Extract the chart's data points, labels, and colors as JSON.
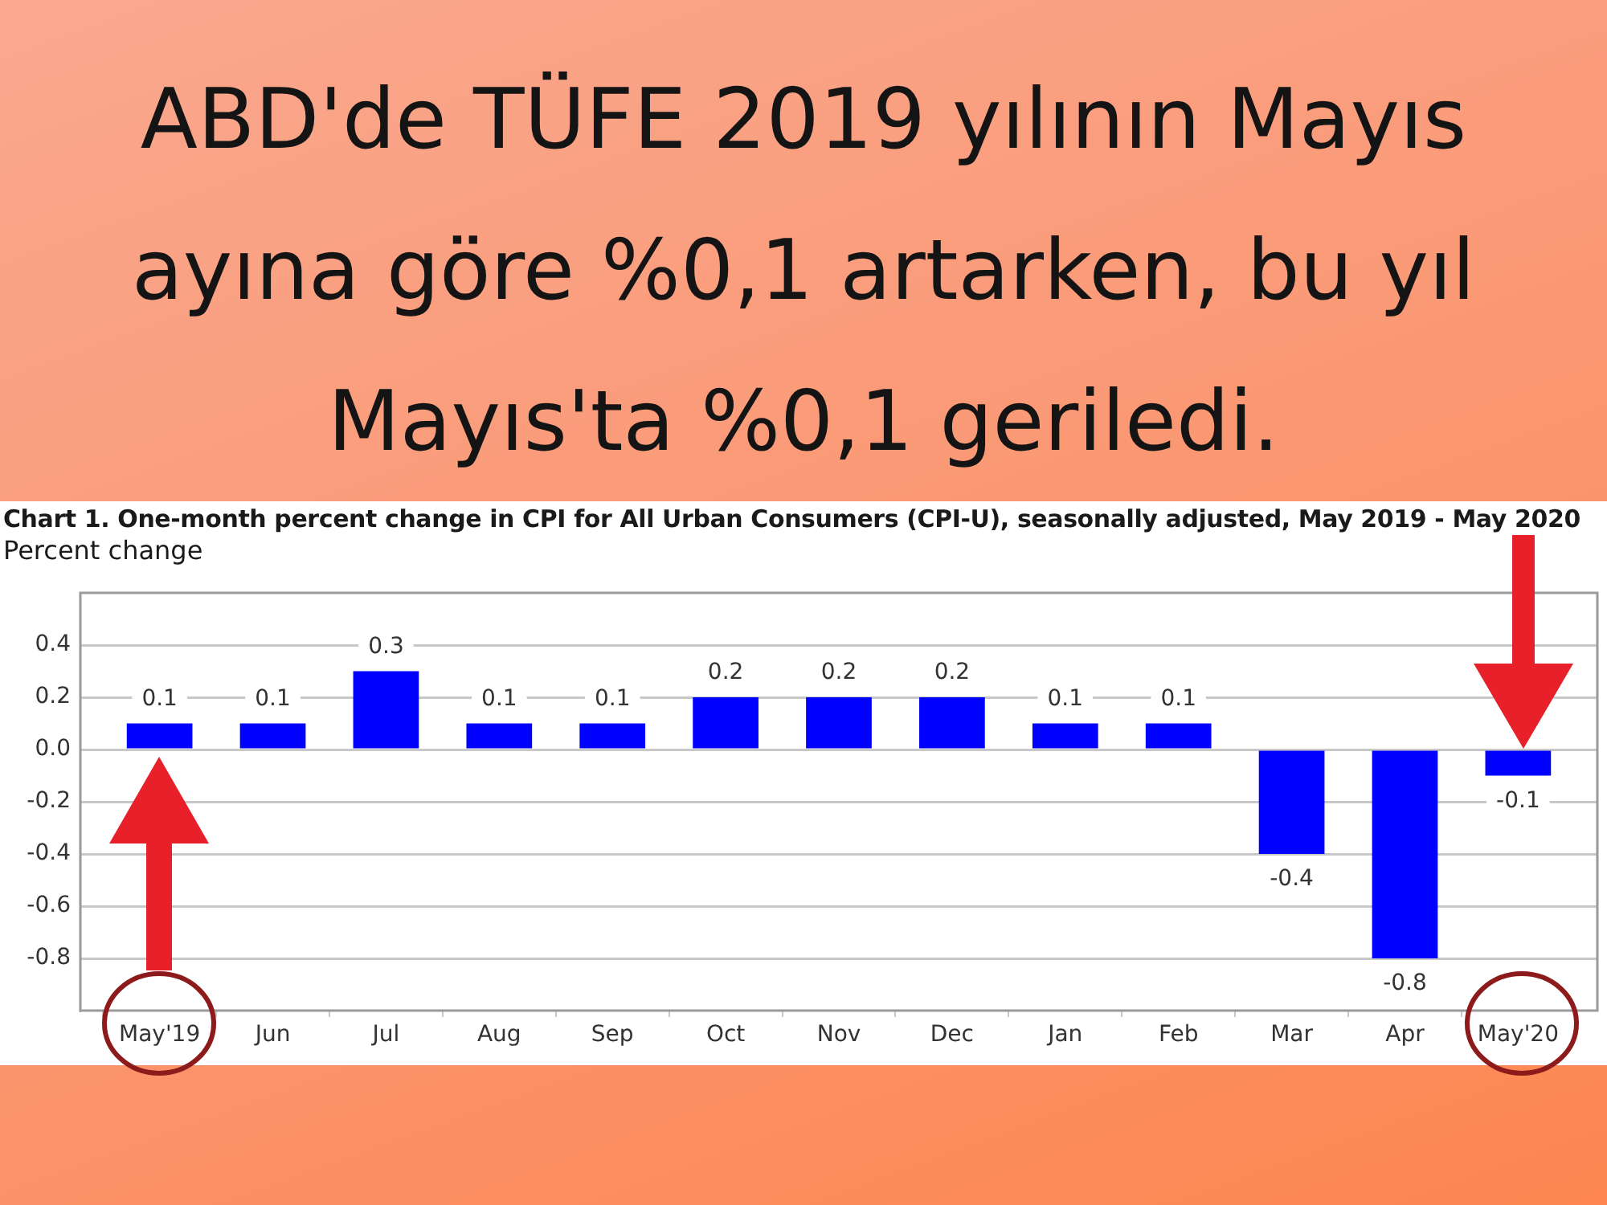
{
  "chart_data": {
    "type": "bar",
    "title": "ABD'de TÜFE 2019 yılının Mayıs ayına göre %0,1 artarken, bu yıl Mayıs'ta %0,1 geriledi.",
    "subtitle": "Chart 1. One-month percent change in CPI for All Urban Consumers (CPI-U), seasonally adjusted, May 2019 - May 2020",
    "ylabel": "Percent change",
    "categories": [
      "May'19",
      "Jun",
      "Jul",
      "Aug",
      "Sep",
      "Oct",
      "Nov",
      "Dec",
      "Jan",
      "Feb",
      "Mar",
      "Apr",
      "May'20"
    ],
    "values": [
      0.1,
      0.1,
      0.3,
      0.1,
      0.1,
      0.2,
      0.2,
      0.2,
      0.1,
      0.1,
      -0.4,
      -0.8,
      -0.1
    ],
    "color": "#0000ff",
    "ylim": [
      -1.0,
      0.6
    ],
    "yticks": [
      -0.8,
      -0.6,
      -0.4,
      -0.2,
      {
        "value": 0,
        "label": "0.0"
      },
      0.2,
      0.4
    ],
    "grid": "y",
    "data_labels": true
  }
}
